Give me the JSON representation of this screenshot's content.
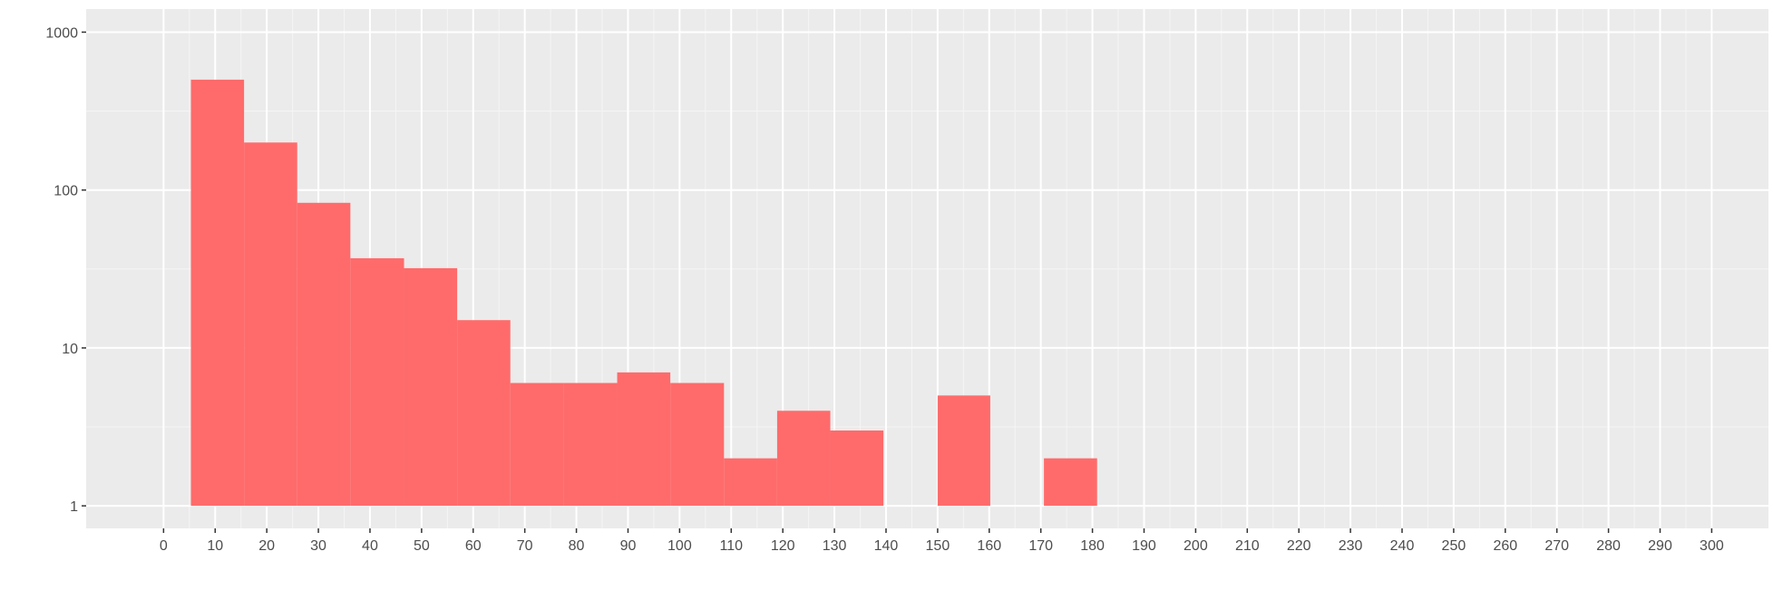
{
  "chart_data": {
    "type": "bar",
    "subtype": "histogram",
    "title": "",
    "xlabel": "",
    "ylabel": "",
    "y_scale": "log10",
    "xlim": [
      -15,
      311
    ],
    "ylim": [
      0.72,
      1400
    ],
    "x_ticks": [
      0,
      10,
      20,
      30,
      40,
      50,
      60,
      70,
      80,
      90,
      100,
      110,
      120,
      130,
      140,
      150,
      160,
      170,
      180,
      190,
      200,
      210,
      220,
      230,
      240,
      250,
      260,
      270,
      280,
      290,
      300
    ],
    "y_ticks": [
      1,
      10,
      100,
      1000
    ],
    "y_tick_labels": [
      "1",
      "10",
      "100",
      "1000"
    ],
    "grid": true,
    "legend": "none",
    "colors": {
      "bar_fill": "#ff6b6b",
      "panel_background": "#ebebeb",
      "grid_major": "#ffffff",
      "grid_minor": "#f5f5f5",
      "tick_text": "#4d4d4d",
      "tick_mark": "#333333"
    },
    "bins": [
      {
        "x0": 5.3,
        "x1": 15.6,
        "count": 500
      },
      {
        "x0": 15.6,
        "x1": 25.9,
        "count": 200
      },
      {
        "x0": 25.9,
        "x1": 36.2,
        "count": 83
      },
      {
        "x0": 36.2,
        "x1": 46.6,
        "count": 37
      },
      {
        "x0": 46.6,
        "x1": 56.9,
        "count": 32
      },
      {
        "x0": 56.9,
        "x1": 67.2,
        "count": 15
      },
      {
        "x0": 67.2,
        "x1": 77.6,
        "count": 6
      },
      {
        "x0": 77.6,
        "x1": 87.9,
        "count": 6
      },
      {
        "x0": 87.9,
        "x1": 98.2,
        "count": 7
      },
      {
        "x0": 98.2,
        "x1": 108.6,
        "count": 6
      },
      {
        "x0": 108.6,
        "x1": 118.9,
        "count": 2
      },
      {
        "x0": 118.9,
        "x1": 129.2,
        "count": 4
      },
      {
        "x0": 129.2,
        "x1": 139.5,
        "count": 3
      },
      {
        "x0": 150.0,
        "x1": 160.2,
        "count": 5
      },
      {
        "x0": 170.6,
        "x1": 180.9,
        "count": 2
      }
    ]
  }
}
